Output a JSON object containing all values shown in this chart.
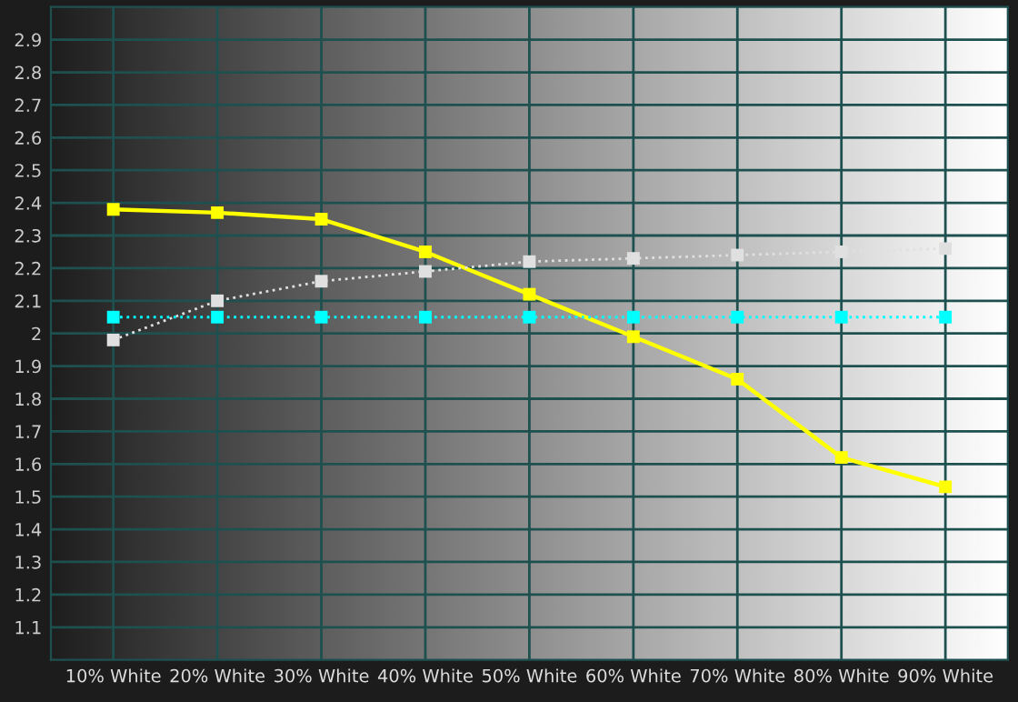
{
  "chart_data": {
    "type": "line",
    "categories": [
      "10% White",
      "20% White",
      "30% White",
      "40% White",
      "50% White",
      "60% White",
      "70% White",
      "80% White",
      "90% White"
    ],
    "series": [
      {
        "color": "#ffff00",
        "line_style": "solid",
        "values": [
          2.38,
          2.37,
          2.35,
          2.25,
          2.12,
          1.99,
          1.86,
          1.62,
          1.53
        ]
      },
      {
        "color": "#e0e0e0",
        "line_style": "dotted",
        "values": [
          1.98,
          2.1,
          2.16,
          2.19,
          2.22,
          2.23,
          2.24,
          2.25,
          2.26
        ]
      },
      {
        "color": "#00ffff",
        "line_style": "dotted",
        "values": [
          2.05,
          2.05,
          2.05,
          2.05,
          2.05,
          2.05,
          2.05,
          2.05,
          2.05
        ]
      }
    ],
    "ylim": [
      1.0,
      3.0
    ],
    "yticks": [
      1.1,
      1.2,
      1.3,
      1.4,
      1.5,
      1.6,
      1.7,
      1.8,
      1.9,
      2,
      2.1,
      2.2,
      2.3,
      2.4,
      2.5,
      2.6,
      2.7,
      2.8,
      2.9
    ],
    "grid": true,
    "marker": "square",
    "legend": false
  }
}
